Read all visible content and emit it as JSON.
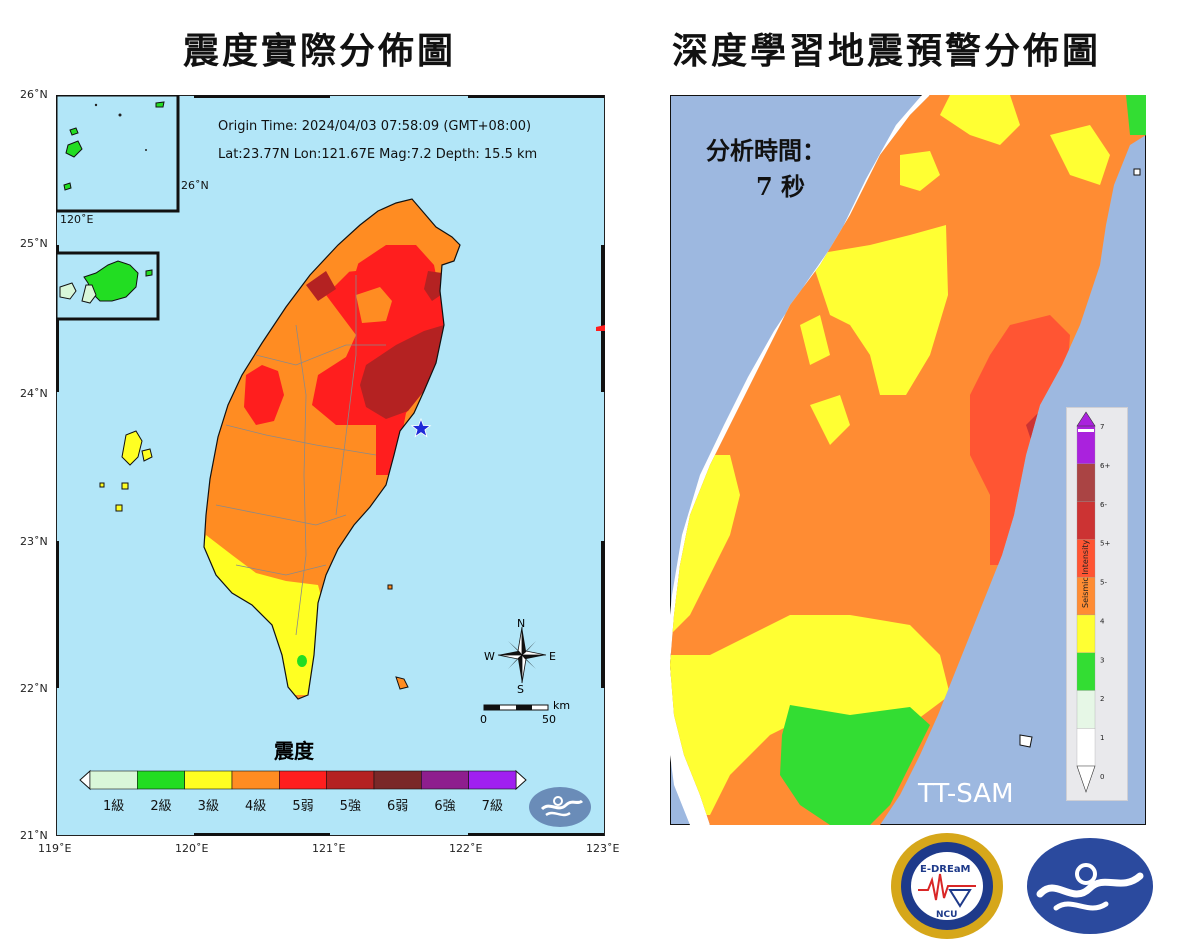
{
  "left_map": {
    "title": "震度實際分佈圖",
    "origin_time": "Origin Time:  2024/04/03   07:58:09   (GMT+08:00)",
    "epicenter_info": "Lat:23.77N  Lon:121.67E  Mag:7.2  Depth: 15.5 km",
    "lat_labels": [
      "26˚N",
      "25˚N",
      "24˚N",
      "23˚N",
      "22˚N",
      "21˚N"
    ],
    "lon_labels": [
      "119˚E",
      "120˚E",
      "121˚E",
      "122˚E",
      "123˚E"
    ],
    "inset_lat_label": "26˚N",
    "inset_lon_label": "120˚E",
    "compass": {
      "n": "N",
      "s": "S",
      "e": "E",
      "w": "W"
    },
    "scale": {
      "start": "0",
      "end": "50",
      "unit": "km"
    },
    "legend_title": "震度",
    "legend": [
      {
        "label": "1級",
        "color": "#d9f7d9"
      },
      {
        "label": "2級",
        "color": "#22dd22"
      },
      {
        "label": "3級",
        "color": "#ffff22"
      },
      {
        "label": "4級",
        "color": "#ff8c22"
      },
      {
        "label": "5弱",
        "color": "#ff1e1e"
      },
      {
        "label": "5強",
        "color": "#b42222"
      },
      {
        "label": "6弱",
        "color": "#7a2828"
      },
      {
        "label": "6強",
        "color": "#8e1e8e"
      },
      {
        "label": "7級",
        "color": "#a020f0"
      }
    ],
    "epicenter_icon": "star-icon",
    "logo_icon": "cwa-logo-icon"
  },
  "right_map": {
    "title": "深度學習地震預警分佈圖",
    "analysis_label": "分析時間：",
    "analysis_value": "7 秒",
    "model_label": "TT-SAM",
    "colorbar_title": "Seismic Intensity",
    "colorbar_ticks": [
      "7",
      "6+",
      "6-",
      "5+",
      "5-",
      "4",
      "3",
      "2",
      "1",
      "0"
    ],
    "colorbar_colors": [
      "#ffffff",
      "#e6f7e6",
      "#33dd33",
      "#ffff33",
      "#ff8c33",
      "#ff5533",
      "#cc3333",
      "#aa4444",
      "#aa22dd"
    ],
    "logos": [
      {
        "name": "e-dream-logo-icon",
        "text": "E-DREaM",
        "sub": "NCU"
      },
      {
        "name": "cwa-logo-icon"
      }
    ]
  }
}
